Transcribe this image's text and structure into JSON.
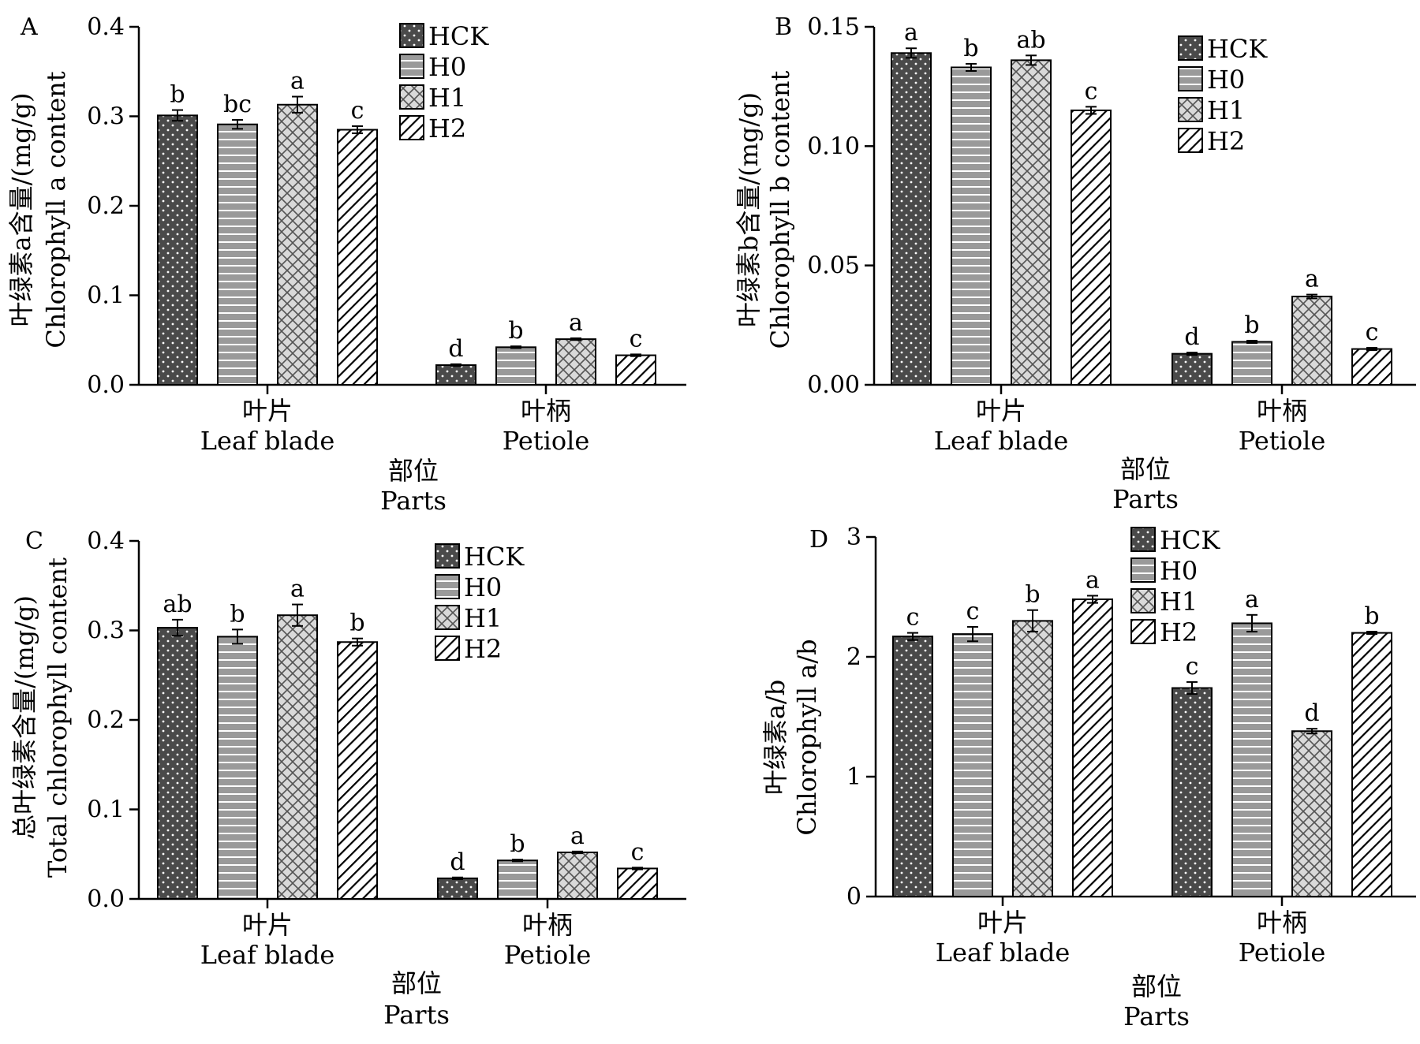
{
  "legend": [
    "HCK",
    "H0",
    "H1",
    "H2"
  ],
  "colors": {
    "HCK": "#4a4a4a",
    "H0": "#9a9a9a",
    "H1": "#d9d9d9",
    "H2": "#ffffff"
  },
  "chart_data": [
    {
      "panel": "A",
      "type": "bar",
      "ylabel_cn": "叶绿素a含量/(mg/g)",
      "ylabel_en": "Chlorophyll a content",
      "xlabel_cn": "部位",
      "xlabel_en": "Parts",
      "yticks": [
        "0.0",
        "0.1",
        "0.2",
        "0.3",
        "0.4"
      ],
      "ylim": [
        0,
        0.4
      ],
      "groups": [
        {
          "cn": "叶片",
          "en": "Leaf blade"
        },
        {
          "cn": "叶柄",
          "en": "Petiole"
        }
      ],
      "series": [
        {
          "name": "HCK",
          "values": [
            0.301,
            0.022
          ],
          "errors": [
            0.006,
            0.001
          ],
          "letters": [
            "b",
            "d"
          ]
        },
        {
          "name": "H0",
          "values": [
            0.291,
            0.042
          ],
          "errors": [
            0.005,
            0.001
          ],
          "letters": [
            "bc",
            "b"
          ]
        },
        {
          "name": "H1",
          "values": [
            0.313,
            0.051
          ],
          "errors": [
            0.009,
            0.001
          ],
          "letters": [
            "a",
            "a"
          ]
        },
        {
          "name": "H2",
          "values": [
            0.285,
            0.033
          ],
          "errors": [
            0.004,
            0.001
          ],
          "letters": [
            "c",
            "c"
          ]
        }
      ]
    },
    {
      "panel": "B",
      "type": "bar",
      "ylabel_cn": "叶绿素b含量/(mg/g)",
      "ylabel_en": "Chlorophyll b content",
      "xlabel_cn": "部位",
      "xlabel_en": "Parts",
      "yticks": [
        "0.00",
        "0.05",
        "0.10",
        "0.15"
      ],
      "ylim": [
        0,
        0.15
      ],
      "groups": [
        {
          "cn": "叶片",
          "en": "Leaf blade"
        },
        {
          "cn": "叶柄",
          "en": "Petiole"
        }
      ],
      "series": [
        {
          "name": "HCK",
          "values": [
            0.139,
            0.013
          ],
          "errors": [
            0.002,
            0.0005
          ],
          "letters": [
            "a",
            "d"
          ]
        },
        {
          "name": "H0",
          "values": [
            0.133,
            0.018
          ],
          "errors": [
            0.0015,
            0.0005
          ],
          "letters": [
            "b",
            "b"
          ]
        },
        {
          "name": "H1",
          "values": [
            0.136,
            0.037
          ],
          "errors": [
            0.002,
            0.0008
          ],
          "letters": [
            "ab",
            "a"
          ]
        },
        {
          "name": "H2",
          "values": [
            0.115,
            0.015
          ],
          "errors": [
            0.0015,
            0.0005
          ],
          "letters": [
            "c",
            "c"
          ]
        }
      ]
    },
    {
      "panel": "C",
      "type": "bar",
      "ylabel_cn": "总叶绿素含量/(mg/g)",
      "ylabel_en": "Total chlorophyll content",
      "xlabel_cn": "部位",
      "xlabel_en": "Parts",
      "yticks": [
        "0.0",
        "0.1",
        "0.2",
        "0.3",
        "0.4"
      ],
      "ylim": [
        0,
        0.4
      ],
      "groups": [
        {
          "cn": "叶片",
          "en": "Leaf blade"
        },
        {
          "cn": "叶柄",
          "en": "Petiole"
        }
      ],
      "series": [
        {
          "name": "HCK",
          "values": [
            0.303,
            0.023
          ],
          "errors": [
            0.009,
            0.001
          ],
          "letters": [
            "ab",
            "d"
          ]
        },
        {
          "name": "H0",
          "values": [
            0.293,
            0.043
          ],
          "errors": [
            0.008,
            0.001
          ],
          "letters": [
            "b",
            "b"
          ]
        },
        {
          "name": "H1",
          "values": [
            0.317,
            0.052
          ],
          "errors": [
            0.012,
            0.001
          ],
          "letters": [
            "a",
            "a"
          ]
        },
        {
          "name": "H2",
          "values": [
            0.287,
            0.034
          ],
          "errors": [
            0.004,
            0.001
          ],
          "letters": [
            "b",
            "c"
          ]
        }
      ]
    },
    {
      "panel": "D",
      "type": "bar",
      "ylabel_cn": "叶绿素a/b",
      "ylabel_en": "Chlorophyll a/b",
      "xlabel_cn": "部位",
      "xlabel_en": "Parts",
      "yticks": [
        "0",
        "1",
        "2",
        "3"
      ],
      "ylim": [
        0,
        3
      ],
      "groups": [
        {
          "cn": "叶片",
          "en": "Leaf blade"
        },
        {
          "cn": "叶柄",
          "en": "Petiole"
        }
      ],
      "series": [
        {
          "name": "HCK",
          "values": [
            2.17,
            1.74
          ],
          "errors": [
            0.03,
            0.05
          ],
          "letters": [
            "c",
            "c"
          ]
        },
        {
          "name": "H0",
          "values": [
            2.19,
            2.28
          ],
          "errors": [
            0.06,
            0.07
          ],
          "letters": [
            "c",
            "a"
          ]
        },
        {
          "name": "H1",
          "values": [
            2.3,
            1.38
          ],
          "errors": [
            0.09,
            0.02
          ],
          "letters": [
            "b",
            "d"
          ]
        },
        {
          "name": "H2",
          "values": [
            2.48,
            2.2
          ],
          "errors": [
            0.03,
            0.01
          ],
          "letters": [
            "a",
            "b"
          ]
        }
      ]
    }
  ]
}
